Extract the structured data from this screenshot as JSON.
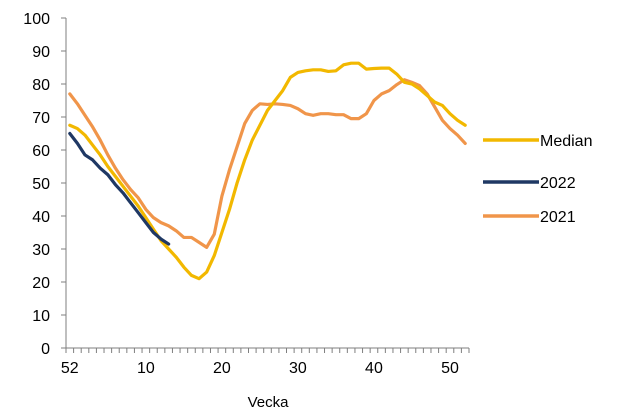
{
  "chart_data": {
    "type": "line",
    "title": "",
    "xlabel": "Vecka",
    "ylabel": "",
    "ylim": [
      0,
      100
    ],
    "y_ticks": [
      0,
      10,
      20,
      30,
      40,
      50,
      60,
      70,
      80,
      90,
      100
    ],
    "x_tick_labels": [
      "52",
      "10",
      "20",
      "30",
      "40",
      "50"
    ],
    "x_categories": [
      "52",
      "1",
      "2",
      "3",
      "4",
      "5",
      "6",
      "7",
      "8",
      "9",
      "10",
      "11",
      "12",
      "13",
      "14",
      "15",
      "16",
      "17",
      "18",
      "19",
      "20",
      "21",
      "22",
      "23",
      "24",
      "25",
      "26",
      "27",
      "28",
      "29",
      "30",
      "31",
      "32",
      "33",
      "34",
      "35",
      "36",
      "37",
      "38",
      "39",
      "40",
      "41",
      "42",
      "43",
      "44",
      "45",
      "46",
      "47",
      "48",
      "49",
      "50",
      "51",
      "52"
    ],
    "grid": false,
    "legend_position": "right",
    "series": [
      {
        "name": "Median",
        "color": "#F2B800",
        "values": [
          67.5,
          66.5,
          64.5,
          61.5,
          58.5,
          55,
          52,
          49,
          46,
          43,
          39.5,
          36,
          32.5,
          30,
          27.5,
          24.5,
          22,
          21,
          23,
          28,
          35,
          42,
          50,
          57,
          63,
          67.5,
          72,
          75,
          78,
          82,
          83.5,
          84,
          84.3,
          84.3,
          83.8,
          84,
          85.8,
          86.3,
          86.3,
          84.5,
          84.7,
          84.8,
          84.8,
          83,
          80.5,
          80,
          78.5,
          76.5,
          74.5,
          73.5,
          71,
          69,
          67.5
        ]
      },
      {
        "name": "2022",
        "color": "#1F3864",
        "values": [
          65,
          62,
          58.5,
          57,
          54.5,
          52.5,
          49.5,
          47,
          44,
          41,
          38,
          35,
          33,
          31.5
        ]
      },
      {
        "name": "2021",
        "color": "#F0954A",
        "values": [
          77,
          74,
          70.5,
          67,
          63,
          58.5,
          54.5,
          51,
          48,
          45.5,
          42,
          39.5,
          38,
          37,
          35.5,
          33.5,
          33.5,
          32,
          30.5,
          34.5,
          46,
          54,
          61,
          68,
          72,
          74,
          73.8,
          74,
          73.8,
          73.5,
          72.5,
          71,
          70.5,
          71,
          71,
          70.7,
          70.7,
          69.5,
          69.5,
          71,
          75,
          77,
          78,
          79.8,
          81.3,
          80.5,
          79.5,
          77,
          73,
          69,
          66.5,
          64.5,
          62
        ]
      }
    ]
  }
}
